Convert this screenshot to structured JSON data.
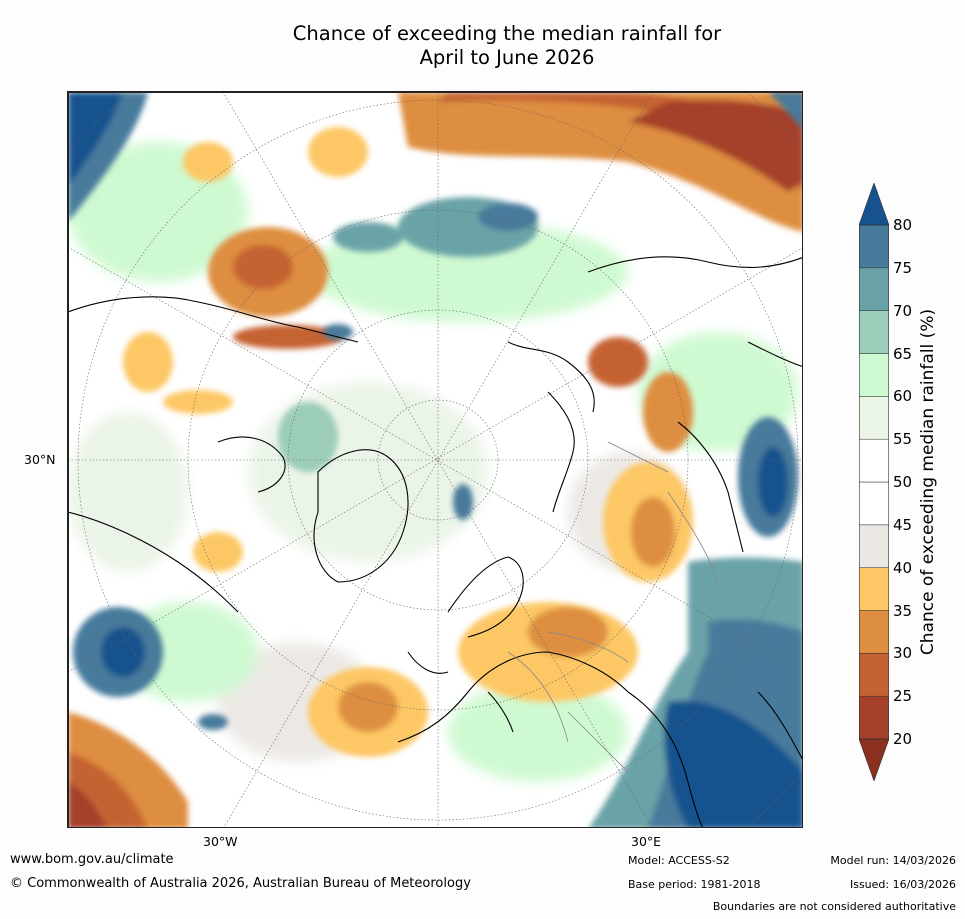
{
  "title": {
    "line1": "Chance of exceeding the median rainfall for",
    "line2": "April to June 2026"
  },
  "map": {
    "lat_label": "30°N",
    "lon_labels": [
      "30°W",
      "30°E"
    ],
    "projection": "north polar stereographic"
  },
  "colorbar": {
    "label": "Chance of exceeding median rainfall (%)",
    "ticks": [
      "80",
      "75",
      "70",
      "65",
      "60",
      "55",
      "50",
      "45",
      "40",
      "35",
      "30",
      "25",
      "20"
    ],
    "colors": [
      "#a5412a",
      "#c56233",
      "#de8e40",
      "#fdc765",
      "#ebe8e4",
      "#ffffff",
      "#ffffff",
      "#eaf4e7",
      "#ccf9cf",
      "#9ccdb9",
      "#6aa3a7",
      "#477a9b"
    ],
    "under_color": "#8b3020",
    "over_color": "#16528e"
  },
  "footer": {
    "url": "www.bom.gov.au/climate",
    "copyright": "© Commonwealth of Australia 2026, Australian Bureau of Meteorology",
    "model": "Model: ACCESS-S2",
    "base_period": "Base period: 1981-2018",
    "model_run": "Model run: 14/03/2026",
    "issued": "Issued: 16/03/2026",
    "disclaimer": "Boundaries are not considered authoritative"
  }
}
